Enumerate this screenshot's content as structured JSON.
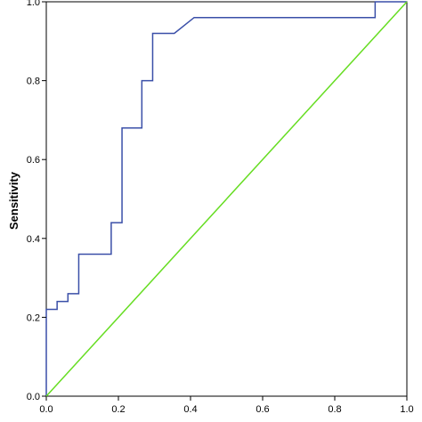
{
  "chart_data": {
    "type": "line",
    "xlabel": "",
    "ylabel": "Sensitivity",
    "xlim": [
      0,
      1
    ],
    "ylim": [
      0,
      1
    ],
    "x_ticks": [
      "0.0",
      "0.2",
      "0.4",
      "0.6",
      "0.8",
      "1.0"
    ],
    "y_ticks": [
      "0.0",
      "0.2",
      "0.4",
      "0.6",
      "0.8",
      "1.0"
    ],
    "grid": false,
    "series": [
      {
        "color": "#3a4fa8",
        "x": [
          0.0,
          0.0,
          0.03,
          0.03,
          0.06,
          0.06,
          0.09,
          0.09,
          0.18,
          0.18,
          0.21,
          0.21,
          0.265,
          0.265,
          0.295,
          0.295,
          0.355,
          0.41,
          0.41,
          0.912,
          0.912,
          1.0
        ],
        "y": [
          0.0,
          0.22,
          0.22,
          0.24,
          0.24,
          0.26,
          0.26,
          0.36,
          0.36,
          0.44,
          0.44,
          0.68,
          0.68,
          0.8,
          0.8,
          0.92,
          0.92,
          0.96,
          0.96,
          0.96,
          1.0,
          1.0
        ]
      },
      {
        "color": "#66dd22",
        "x": [
          0,
          1
        ],
        "y": [
          0,
          1
        ]
      }
    ]
  }
}
